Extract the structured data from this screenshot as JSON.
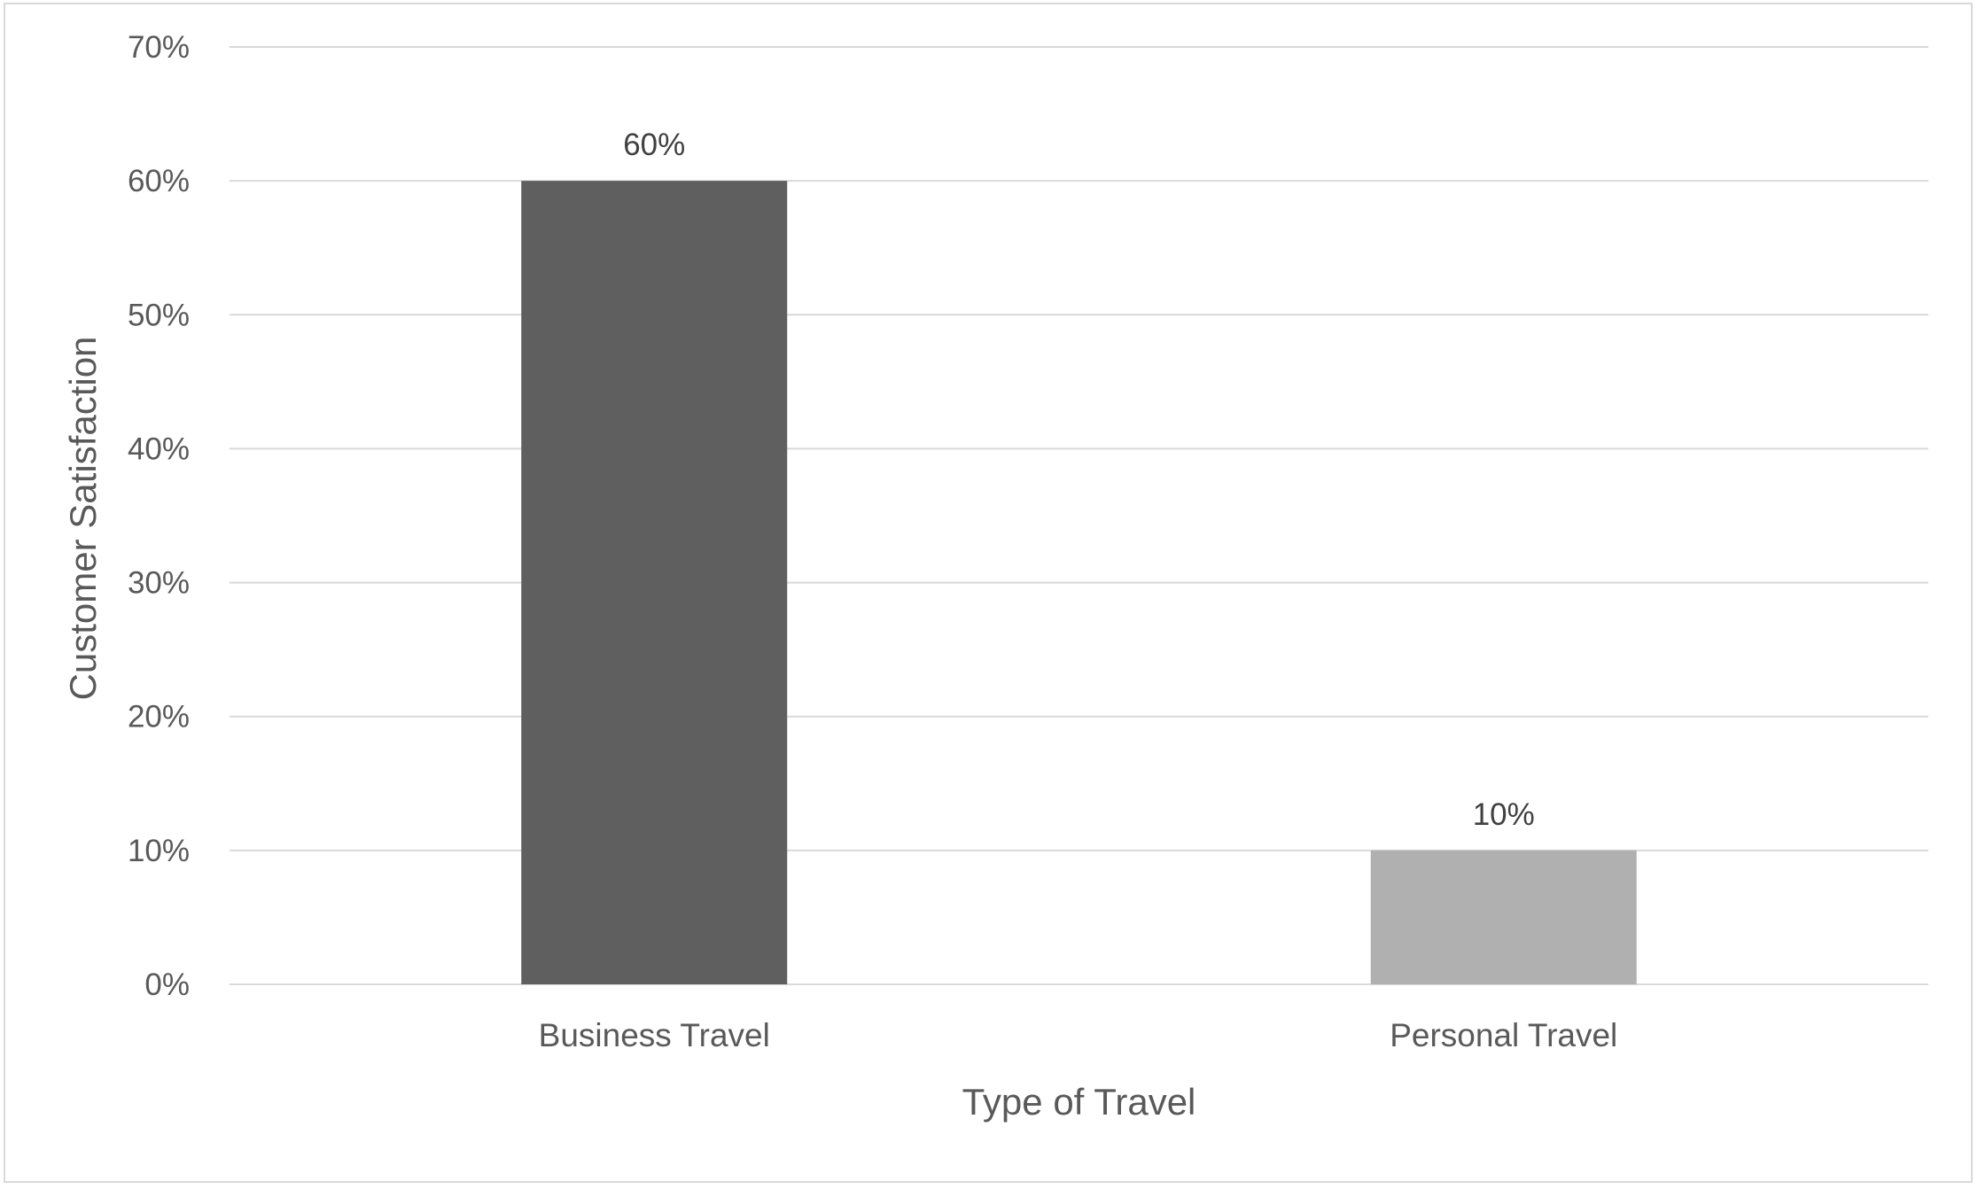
{
  "chart_data": {
    "type": "bar",
    "categories": [
      "Business Travel",
      "Personal Travel"
    ],
    "values": [
      60,
      10
    ],
    "data_labels": [
      "60%",
      "10%"
    ],
    "bar_colors": [
      "#5f5f5f",
      "#b0b0b0"
    ],
    "title": "",
    "xlabel": "Type of Travel",
    "ylabel": "Customer Satisfaction",
    "ylim": [
      0,
      70
    ],
    "y_ticks": [
      0,
      10,
      20,
      30,
      40,
      50,
      60,
      70
    ],
    "y_tick_labels": [
      "0%",
      "10%",
      "20%",
      "30%",
      "40%",
      "50%",
      "60%",
      "70%"
    ],
    "grid": true,
    "legend": "none"
  }
}
